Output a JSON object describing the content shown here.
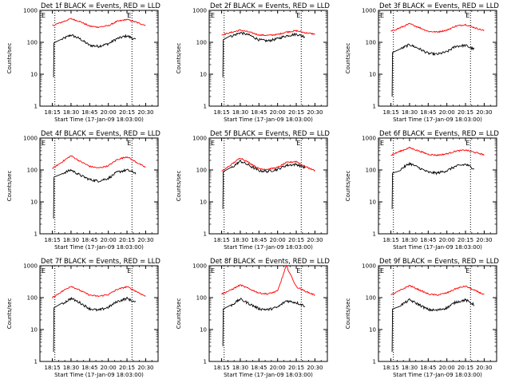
{
  "figure": {
    "x_tick_labels": [
      "18:15",
      "18:30",
      "18:45",
      "20:00",
      "20:15",
      "20:30"
    ],
    "y_tick_labels": [
      "1",
      "10",
      "100",
      "1000"
    ],
    "xlabel": "Start Time (17-Jan-09 18:03:00)",
    "ylabel": "Counts/sec",
    "marker_label": "E",
    "colors": {
      "events": "#000000",
      "lld": "#ff0000",
      "frame": "#000000",
      "dotted": "#000000"
    }
  },
  "chart_data": [
    {
      "type": "line",
      "title": "Det 1f BLACK = Events, RED = LLD",
      "xlabel": "Start Time (17-Jan-09 18:03:00)",
      "ylabel": "Counts/sec",
      "y_scale": "log",
      "ylim": [
        1,
        1000
      ],
      "grid": false,
      "x": [
        "18:15",
        "18:22",
        "18:30",
        "18:37",
        "18:45",
        "18:52",
        "20:00",
        "20:07",
        "20:15",
        "20:22",
        "20:30"
      ],
      "x_ticks": [
        "18:15",
        "18:30",
        "18:45",
        "20:00",
        "20:15",
        "20:30"
      ],
      "series": [
        {
          "name": "Events",
          "color": "#000000",
          "values": [
            null,
            120,
            170,
            130,
            80,
            75,
            90,
            130,
            160,
            120,
            null
          ]
        },
        {
          "name": "LLD",
          "color": "#ff0000",
          "values": [
            330,
            420,
            550,
            450,
            320,
            300,
            330,
            450,
            520,
            430,
            340
          ]
        }
      ],
      "drop_start": {
        "x": "18:15",
        "value": 8
      },
      "markers": {
        "label": "E",
        "dotted_x": [
          "18:17",
          "20:19"
        ]
      }
    },
    {
      "type": "line",
      "title": "Det 2f BLACK = Events, RED = LLD",
      "xlabel": "Start Time (17-Jan-09 18:03:00)",
      "ylabel": "Counts/sec",
      "y_scale": "log",
      "ylim": [
        1,
        1000
      ],
      "grid": false,
      "x": [
        "18:15",
        "18:22",
        "18:30",
        "18:37",
        "18:45",
        "18:52",
        "20:00",
        "20:07",
        "20:15",
        "20:22",
        "20:30"
      ],
      "x_ticks": [
        "18:15",
        "18:30",
        "18:45",
        "20:00",
        "20:15",
        "20:30"
      ],
      "series": [
        {
          "name": "Events",
          "color": "#000000",
          "values": [
            null,
            150,
            200,
            170,
            120,
            110,
            130,
            160,
            180,
            150,
            null
          ]
        },
        {
          "name": "LLD",
          "color": "#ff0000",
          "values": [
            170,
            200,
            240,
            210,
            170,
            165,
            175,
            210,
            230,
            200,
            180
          ]
        }
      ],
      "drop_start": {
        "x": "18:15",
        "value": 8
      },
      "markers": {
        "label": "E",
        "dotted_x": [
          "18:17",
          "20:19"
        ]
      }
    },
    {
      "type": "line",
      "title": "Det 3f BLACK = Events, RED = LLD",
      "xlabel": "Start Time (17-Jan-09 18:03:00)",
      "ylabel": "Counts/sec",
      "y_scale": "log",
      "ylim": [
        1,
        1000
      ],
      "grid": false,
      "x": [
        "18:15",
        "18:22",
        "18:30",
        "18:37",
        "18:45",
        "18:52",
        "20:00",
        "20:07",
        "20:15",
        "20:22",
        "20:30"
      ],
      "x_ticks": [
        "18:15",
        "18:30",
        "18:45",
        "20:00",
        "20:15",
        "20:30"
      ],
      "series": [
        {
          "name": "Events",
          "color": "#000000",
          "values": [
            null,
            60,
            85,
            65,
            45,
            42,
            50,
            75,
            80,
            60,
            null
          ]
        },
        {
          "name": "LLD",
          "color": "#ff0000",
          "values": [
            220,
            280,
            380,
            300,
            220,
            210,
            240,
            320,
            360,
            290,
            230
          ]
        }
      ],
      "drop_start": {
        "x": "18:15",
        "value": 2
      },
      "markers": {
        "label": "E",
        "dotted_x": [
          "18:17",
          "20:19"
        ]
      }
    },
    {
      "type": "line",
      "title": "Det 4f BLACK = Events, RED = LLD",
      "xlabel": "Start Time (17-Jan-09 18:03:00)",
      "ylabel": "Counts/sec",
      "y_scale": "log",
      "ylim": [
        1,
        1000
      ],
      "grid": false,
      "x": [
        "18:15",
        "18:22",
        "18:30",
        "18:37",
        "18:45",
        "18:52",
        "20:00",
        "20:07",
        "20:15",
        "20:22",
        "20:30"
      ],
      "x_ticks": [
        "18:15",
        "18:30",
        "18:45",
        "20:00",
        "20:15",
        "20:30"
      ],
      "series": [
        {
          "name": "Events",
          "color": "#000000",
          "values": [
            null,
            75,
            100,
            70,
            50,
            45,
            55,
            85,
            100,
            80,
            null
          ]
        },
        {
          "name": "LLD",
          "color": "#ff0000",
          "values": [
            110,
            170,
            280,
            190,
            130,
            115,
            135,
            210,
            260,
            180,
            120
          ]
        }
      ],
      "drop_start": {
        "x": "18:15",
        "value": 3
      },
      "markers": {
        "label": "E",
        "dotted_x": [
          "18:17",
          "20:19"
        ]
      }
    },
    {
      "type": "line",
      "title": "Det 5f BLACK = Events, RED = LLD",
      "xlabel": "Start Time (17-Jan-09 18:03:00)",
      "ylabel": "Counts/sec",
      "y_scale": "log",
      "ylim": [
        1,
        1000
      ],
      "grid": false,
      "x": [
        "18:15",
        "18:22",
        "18:30",
        "18:37",
        "18:45",
        "18:52",
        "20:00",
        "20:07",
        "20:15",
        "20:22",
        "20:30"
      ],
      "x_ticks": [
        "18:15",
        "18:30",
        "18:45",
        "20:00",
        "20:15",
        "20:30"
      ],
      "series": [
        {
          "name": "Events",
          "color": "#000000",
          "values": [
            null,
            110,
            190,
            140,
            95,
            90,
            105,
            140,
            150,
            120,
            null
          ]
        },
        {
          "name": "LLD",
          "color": "#ff0000",
          "values": [
            90,
            140,
            240,
            170,
            110,
            105,
            120,
            170,
            185,
            130,
            95
          ]
        }
      ],
      "drop_start": {
        "x": "18:15",
        "value": 6
      },
      "markers": {
        "label": "E",
        "dotted_x": [
          "18:17",
          "20:19"
        ]
      }
    },
    {
      "type": "line",
      "title": "Det 6f BLACK = Events, RED = LLD",
      "xlabel": "Start Time (17-Jan-09 18:03:00)",
      "ylabel": "Counts/sec",
      "y_scale": "log",
      "ylim": [
        1,
        1000
      ],
      "grid": false,
      "x": [
        "18:15",
        "18:22",
        "18:30",
        "18:37",
        "18:45",
        "18:52",
        "20:00",
        "20:07",
        "20:15",
        "20:22",
        "20:30"
      ],
      "x_ticks": [
        "18:15",
        "18:30",
        "18:45",
        "20:00",
        "20:15",
        "20:30"
      ],
      "series": [
        {
          "name": "Events",
          "color": "#000000",
          "values": [
            null,
            100,
            160,
            120,
            85,
            80,
            95,
            130,
            150,
            110,
            null
          ]
        },
        {
          "name": "LLD",
          "color": "#ff0000",
          "values": [
            290,
            380,
            500,
            400,
            310,
            290,
            320,
            390,
            420,
            360,
            300
          ]
        }
      ],
      "drop_start": {
        "x": "18:15",
        "value": 6
      },
      "markers": {
        "label": "E",
        "dotted_x": [
          "18:17",
          "20:19"
        ]
      }
    },
    {
      "type": "line",
      "title": "Det 7f BLACK = Events, RED = LLD",
      "xlabel": "Start Time (17-Jan-09 18:03:00)",
      "ylabel": "Counts/sec",
      "y_scale": "log",
      "ylim": [
        1,
        1000
      ],
      "grid": false,
      "x": [
        "18:15",
        "18:22",
        "18:30",
        "18:37",
        "18:45",
        "18:52",
        "20:00",
        "20:07",
        "20:15",
        "20:22",
        "20:30"
      ],
      "x_ticks": [
        "18:15",
        "18:30",
        "18:45",
        "20:00",
        "20:15",
        "20:30"
      ],
      "series": [
        {
          "name": "Events",
          "color": "#000000",
          "values": [
            null,
            60,
            95,
            70,
            45,
            40,
            50,
            75,
            95,
            70,
            null
          ]
        },
        {
          "name": "LLD",
          "color": "#ff0000",
          "values": [
            100,
            150,
            230,
            170,
            120,
            110,
            125,
            180,
            220,
            160,
            110
          ]
        }
      ],
      "drop_start": {
        "x": "18:15",
        "value": 2
      },
      "markers": {
        "label": "E",
        "dotted_x": [
          "18:17",
          "20:19"
        ]
      }
    },
    {
      "type": "line",
      "title": "Det 8f BLACK = Events, RED = LLD",
      "xlabel": "Start Time (17-Jan-09 18:03:00)",
      "ylabel": "Counts/sec",
      "y_scale": "log",
      "ylim": [
        1,
        1000
      ],
      "grid": false,
      "x": [
        "18:15",
        "18:22",
        "18:30",
        "18:37",
        "18:45",
        "18:52",
        "20:00",
        "20:07",
        "20:15",
        "20:22",
        "20:30"
      ],
      "x_ticks": [
        "18:15",
        "18:30",
        "18:45",
        "20:00",
        "20:15",
        "20:30"
      ],
      "series": [
        {
          "name": "Events",
          "color": "#000000",
          "values": [
            null,
            55,
            90,
            65,
            45,
            42,
            50,
            80,
            70,
            55,
            null
          ]
        },
        {
          "name": "LLD",
          "color": "#ff0000",
          "values": [
            130,
            170,
            250,
            190,
            140,
            130,
            160,
            1000,
            220,
            160,
            120
          ]
        }
      ],
      "drop_start": {
        "x": "18:15",
        "value": 3
      },
      "markers": {
        "label": "E",
        "dotted_x": [
          "18:17",
          "20:19"
        ]
      }
    },
    {
      "type": "line",
      "title": "Det 9f BLACK = Events, RED = LLD",
      "xlabel": "Start Time (17-Jan-09 18:03:00)",
      "ylabel": "Counts/sec",
      "y_scale": "log",
      "ylim": [
        1,
        1000
      ],
      "grid": false,
      "x": [
        "18:15",
        "18:22",
        "18:30",
        "18:37",
        "18:45",
        "18:52",
        "20:00",
        "20:07",
        "20:15",
        "20:22",
        "20:30"
      ],
      "x_ticks": [
        "18:15",
        "18:30",
        "18:45",
        "20:00",
        "20:15",
        "20:30"
      ],
      "series": [
        {
          "name": "Events",
          "color": "#000000",
          "values": [
            null,
            55,
            85,
            62,
            42,
            40,
            48,
            72,
            85,
            60,
            null
          ]
        },
        {
          "name": "LLD",
          "color": "#ff0000",
          "values": [
            120,
            165,
            240,
            180,
            130,
            120,
            140,
            190,
            230,
            170,
            125
          ]
        }
      ],
      "drop_start": {
        "x": "18:15",
        "value": 2
      },
      "markers": {
        "label": "E",
        "dotted_x": [
          "18:17",
          "20:19"
        ]
      }
    }
  ]
}
